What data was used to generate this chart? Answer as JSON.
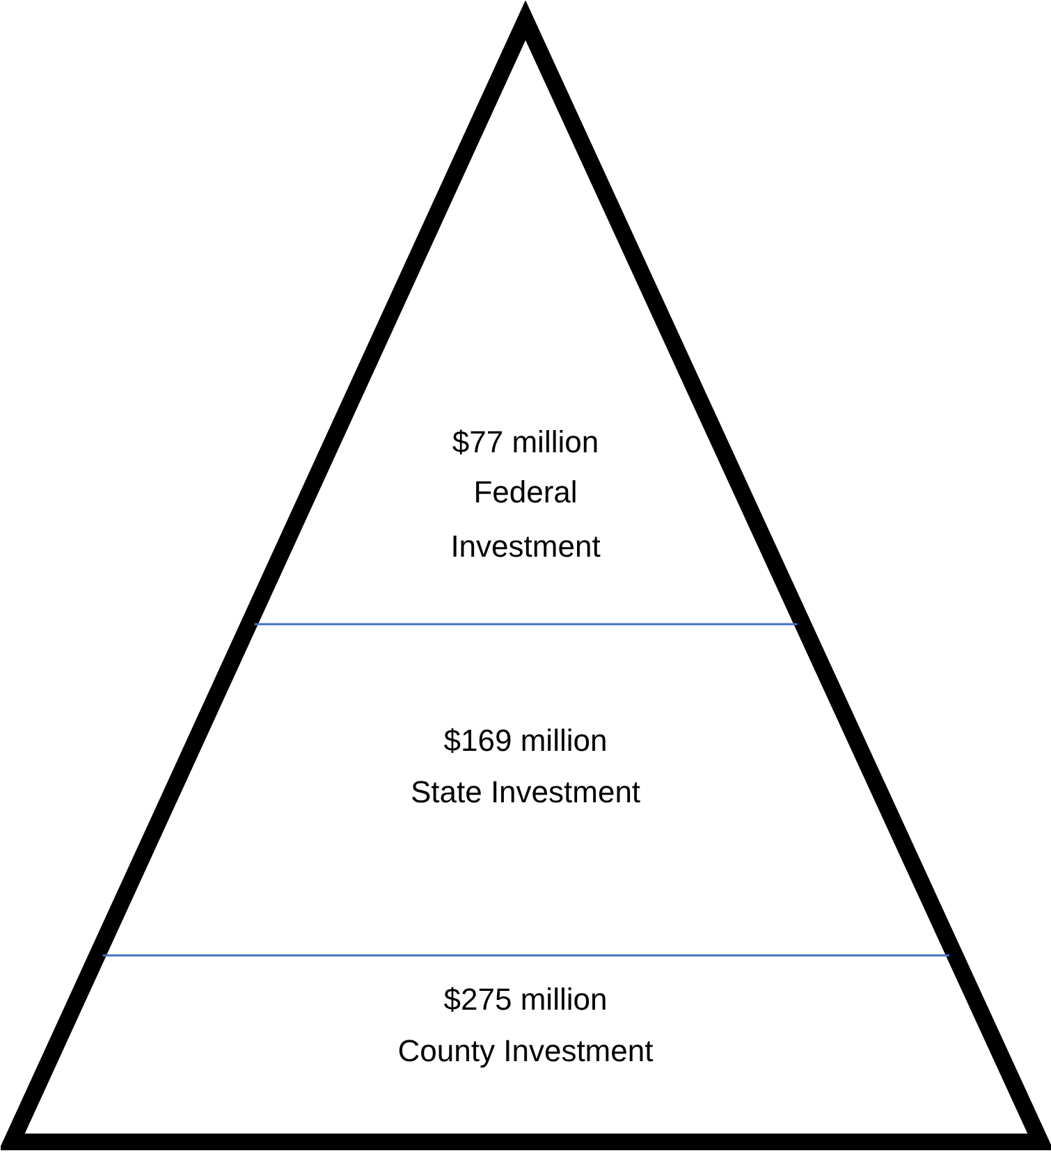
{
  "chart_data": {
    "type": "other",
    "categories": [
      "Federal Investment",
      "State Investment",
      "County Investment"
    ],
    "values": [
      77,
      169,
      275
    ],
    "value_labels": [
      "$77 million",
      "$169 million",
      "$275 million"
    ],
    "color": "#4472c4"
  }
}
